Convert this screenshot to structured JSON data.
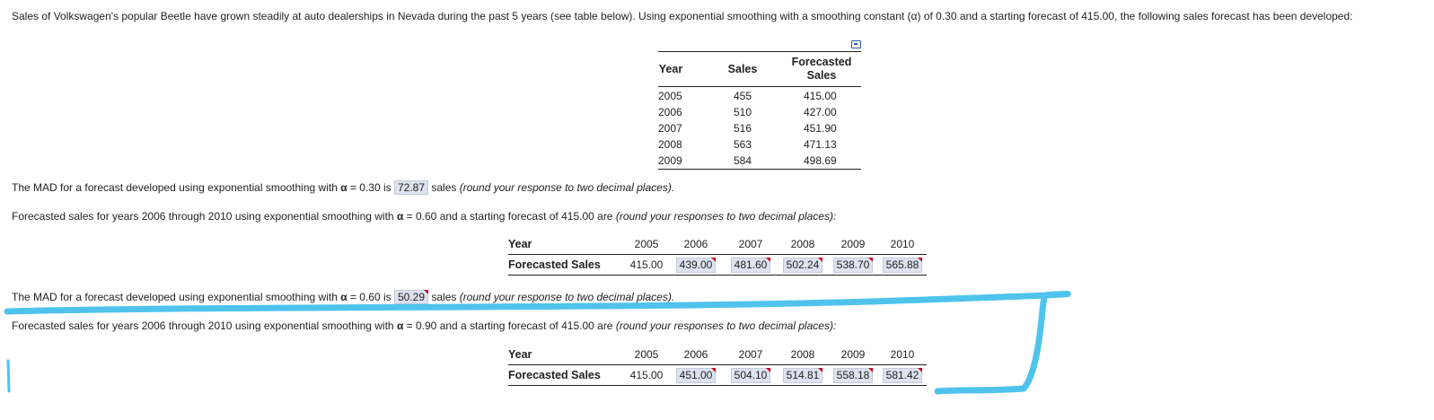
{
  "intro_text": "Sales of Volkswagen's popular Beetle have grown steadily at auto dealerships in Nevada during the past 5 years (see table below).  Using exponential smoothing with a smoothing constant (α) of 0.30 and a starting forecast of 415.00, the following sales forecast has been developed:",
  "table1": {
    "headers": {
      "year": "Year",
      "sales": "Sales",
      "forecast_line1": "Forecasted",
      "forecast_line2": "Sales"
    },
    "rows": [
      {
        "year": "2005",
        "sales": "455",
        "forecast": "415.00"
      },
      {
        "year": "2006",
        "sales": "510",
        "forecast": "427.00"
      },
      {
        "year": "2007",
        "sales": "516",
        "forecast": "451.90"
      },
      {
        "year": "2008",
        "sales": "563",
        "forecast": "471.13"
      },
      {
        "year": "2009",
        "sales": "584",
        "forecast": "498.69"
      }
    ]
  },
  "q1": {
    "pre": "The MAD for a forecast developed using exponential smoothing with ",
    "alpha": "α",
    "mid": " = 0.30 is ",
    "answer": "72.87",
    "post": " sales ",
    "note": "(round your response to two decimal places)."
  },
  "q2": {
    "pre": "Forecasted sales for years 2006 through 2010 using exponential smoothing with ",
    "alpha": "α",
    "mid": " = 0.60 and a starting forecast of 415.00 are ",
    "note": "(round your responses to two decimal places):"
  },
  "table2": {
    "year_label": "Year",
    "fc_label": "Forecasted Sales",
    "years": [
      "2005",
      "2006",
      "2007",
      "2008",
      "2009",
      "2010"
    ],
    "values": [
      "415.00",
      "439.00",
      "481.60",
      "502.24",
      "538.70",
      "565.88"
    ]
  },
  "q3": {
    "pre": "The MAD for a forecast developed using exponential smoothing with ",
    "alpha": "α",
    "mid": " = 0.60 is ",
    "answer": "50.29",
    "post": " sales ",
    "note": "(round your response to two decimal places)."
  },
  "q4": {
    "pre": "Forecasted sales for years 2006 through 2010 using exponential smoothing with ",
    "alpha": "α",
    "mid": " = 0.90 and a starting forecast of 415.00 are ",
    "note": "(round your responses to two decimal places):"
  },
  "table3": {
    "year_label": "Year",
    "fc_label": "Forecasted Sales",
    "years": [
      "2005",
      "2006",
      "2007",
      "2008",
      "2009",
      "2010"
    ],
    "values": [
      "415.00",
      "451.00",
      "504.10",
      "514.81",
      "558.18",
      "581.42"
    ]
  },
  "colors": {
    "answer_bg": "#dde3ef",
    "flag": "#d0021b",
    "marker": "#4fc3ec"
  },
  "icons": {
    "print": "print-icon"
  }
}
